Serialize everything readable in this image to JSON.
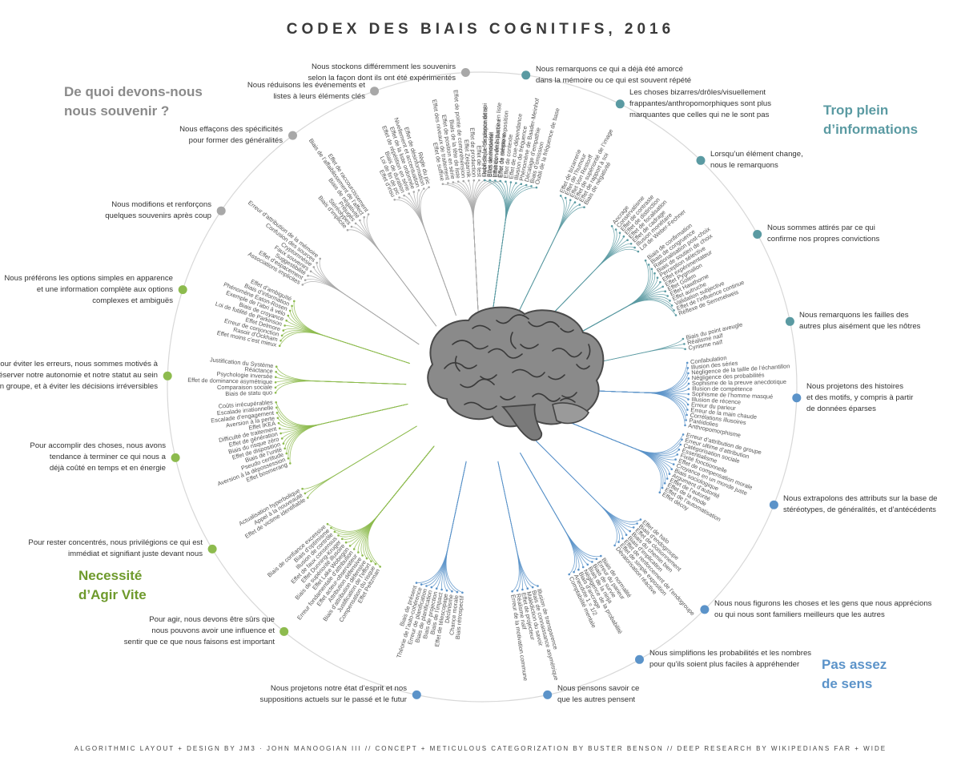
{
  "title": "CODEX DES BIAIS COGNITIFS, 2016",
  "credits": "ALGORITHMIC LAYOUT + DESIGN BY JM3 · JOHN MANOOGIAN III // CONCEPT + METICULOUS CATEGORIZATION BY BUSTER BENSON // DEEP RESEARCH BY WIKIPEDIANS FAR + WIDE",
  "colors": {
    "memory": "#a8a8a8",
    "info": "#5a9aa2",
    "meaning": "#5b93c9",
    "speed": "#8dbb4e"
  },
  "quadrants": {
    "memory": [
      "De quoi devons-nous",
      "nous souvenir ?"
    ],
    "info": [
      "Trop plein",
      "d’informations"
    ],
    "speed": [
      "Necessité",
      "d’Agir Vite"
    ],
    "meaning": [
      "Pas assez",
      "de sens"
    ]
  },
  "groups": [
    {
      "id": "m1",
      "quadrant": "memory",
      "angle": -93,
      "side": "r",
      "lines": [
        "Nous stockons différemment les souvenirs",
        "selon la façon dont ils ont été expérimentés"
      ],
      "leaves": [
        "Effet de suffixe",
        "Effet des niveaux de traitement",
        "Effet de position en série",
        "Biais de la tête de liste",
        "Effet de pointe de compréhension",
        "Effet Zeigarnik",
        "Effet de production",
        "Effet de test",
        "Oubli de la fréquence de soi",
        "Effet de modalité",
        "Inhibition de la partie en liste",
        "Effet de mémoire"
      ]
    },
    {
      "id": "m2",
      "quadrant": "memory",
      "angle": -110,
      "side": "r",
      "lines": [
        "Nous réduisons les événements et",
        "listes à leurs éléments clés"
      ],
      "leaves": [
        "Effet d’insu",
        "Loi de fin de pic",
        "Biais de duration",
        "Effet de répétition en série",
        "Effet de la liste ordonnée",
        "Nivellement et accentuation",
        "Effet de désinformation",
        "Règle du pic"
      ]
    },
    {
      "id": "m3",
      "quadrant": "memory",
      "angle": -127,
      "side": "r",
      "lines": [
        "Nous effaçons des spécificités",
        "pour former des généralités"
      ],
      "leaves": [
        "Biais d’implicite",
        "Stéréotypes",
        "Préjugés",
        "Biais de négativité",
        "Biais de l’affaiblissement de l’affect",
        "Effet de raccourcissement"
      ]
    },
    {
      "id": "m4",
      "quadrant": "memory",
      "angle": -146,
      "side": "r",
      "lines": [
        "Nous modifions et renforçons",
        "quelques souvenirs après coup"
      ],
      "leaves": [
        "Associations implicites",
        "Effet d’espacement",
        "Suggestibilité",
        "Faux souvenirs",
        "Cryptomnésie",
        "Confusion des sources",
        "Erreur d’attribution de la mémoire"
      ]
    },
    {
      "id": "s1",
      "quadrant": "speed",
      "angle": -162,
      "side": "r",
      "lines": [
        "Nous préférons les options simples en apparence",
        "et une information complète aux options",
        "complexes et ambiguës"
      ],
      "leaves": [
        "Effet moins c’est mieux",
        "Rasoir d’Ockham",
        "Erreur de conjonction",
        "Effet Delmore",
        "Loi de futilité de Parkinson",
        "Biais de croyance",
        "Exemple de l’abri à vélo",
        "Phénomène Eaton-Rosen",
        "Biais d’information",
        "Effet d’ambiguïté"
      ]
    },
    {
      "id": "s2",
      "quadrant": "speed",
      "angle": -178,
      "side": "r",
      "lines": [
        "Pour éviter les erreurs, nous sommes motivés à",
        "préserver notre autonomie et notre statut au sein",
        "d’un groupe, et à éviter les décisions irréversibles"
      ],
      "leaves": [
        "Biais de statu quo",
        "Comparaison sociale",
        "Effet de dominance asymétrique",
        "Psychologie inversée",
        "Réactance",
        "Justification du Système"
      ]
    },
    {
      "id": "s3",
      "quadrant": "speed",
      "angle": 167,
      "side": "r",
      "lines": [
        "Pour accomplir des choses, nous avons",
        "tendance à terminer ce qui nous a",
        "déjà coûté en temps et en énergie"
      ],
      "leaves": [
        "Effet boomerang",
        "Aversion à la dépossession",
        "Pseudo certitude",
        "Biais de l’unité",
        "Effet de disposition",
        "Biais du risque zéro",
        "Effet de génération",
        "Difficulté de traitement",
        "Effet IKEA",
        "Aversion à la perte",
        "Escalade d’engagement",
        "Escalade irrationnelle",
        "Coûts irrécupérables"
      ]
    },
    {
      "id": "s4",
      "quadrant": "speed",
      "angle": 149,
      "side": "r",
      "lines": [
        "Pour rester concentrés, nous privilégions ce qui est",
        "immédiat et signifiant juste devant nous"
      ],
      "leaves": [
        "Effet de victime identifiable",
        "Appel à la nouveauté",
        "Actualisation hyperbolique"
      ]
    },
    {
      "id": "s5",
      "quadrant": "speed",
      "angle": 129,
      "side": "r",
      "lines": [
        "Pour agir, nous devons être sûrs que",
        "nous pouvons avoir une influence et",
        "sentir que ce que nous faisons est important"
      ],
      "leaves": [
        "Effet Peltzman",
        "Compensation du risque",
        "Justification de l’effort",
        "Biais d’attribution défensive",
        "Attribution défensive",
        "Effet acteur-observateur",
        "Erreur fondamentale d’attribution",
        "Effet Lake Wobegon",
        "Biais de supériorité illusoire",
        "Effet Dunning-Kruger",
        "Effet de faux consensus",
        "Illusion de contrôle",
        "Biais d’optimisme",
        "Biais de confiance excessive"
      ]
    },
    {
      "id": "n1",
      "quadrant": "meaning",
      "angle": 102,
      "side": "r",
      "lines": [
        "Nous projetons notre état d’esprit et nos",
        "suppositions actuels sur le passé et le futur"
      ],
      "leaves": [
        "Biais rétrospectif",
        "Chance morale",
        "Déclinisme",
        "Effet de télescopage",
        "Biais de l’impact",
        "Biais de projection",
        "Biais de planification",
        "Erreur de planification",
        "Théorie de l’auto-cohérence",
        "Biais de présent"
      ]
    },
    {
      "id": "n2",
      "quadrant": "meaning",
      "angle": 78,
      "side": "l",
      "lines": [
        "Nous pensons savoir ce",
        "que les autres pensent"
      ],
      "leaves": [
        "Illusion de transparence",
        "Biais de connaissance asymétrique",
        "Malédiction du savoir",
        "Effet de projecteur",
        "Réalisme naïf",
        "Erreur de la motivation commune"
      ]
    },
    {
      "id": "n3",
      "quadrant": "meaning",
      "angle": 60,
      "side": "l",
      "lines": [
        "Nous simplifions les probabilités et les nombres",
        "pour qu’ils soient plus faciles à appréhender"
      ],
      "leaves": [
        "Biais de normalité",
        "Erreur du parieur",
        "Biais de survie",
        "Biais de la ninja",
        "Négligence de la probabilité",
        "Biais d’ancrage",
        "Anecdote 1 = 1/2",
        "Comptabilité mentale"
      ]
    },
    {
      "id": "n4",
      "quadrant": "meaning",
      "angle": 45,
      "side": "l",
      "lines": [
        "Nous nous figurons les choses et les gens que nous apprécions",
        "ou qui nous sont familiers meilleurs que les autres"
      ],
      "leaves": [
        "Effet de halo",
        "Biais d’endogroupe",
        "Effet de cloisonnement",
        "Biais du chemin bien",
        "Biais d’implication",
        "Effet de renforcement de l’endogroupe",
        "Effet de simple exposition",
        "Dévalorisation réactive"
      ]
    },
    {
      "id": "n5",
      "quadrant": "meaning",
      "angle": 22,
      "side": "l",
      "lines": [
        "Nous extrapolons des attributs sur la base de",
        "stéréotypes, de généralités, et d’antécédents"
      ],
      "leaves": [
        "Erreur d’attribution de groupe",
        "Erreur ultime d’attribution",
        "Catégorisation sociale",
        "Essentialisme",
        "Fixité fonctionnelle",
        "Effet de compensation morale",
        "Croyance en un monde juste",
        "Biais sociologique",
        "Argument d’autorité",
        "Effet de l’autorité",
        "Effet de la mode",
        "Effet de l’automatisation",
        "Effet décoy"
      ]
    },
    {
      "id": "n6",
      "quadrant": "meaning",
      "angle": 2,
      "side": "l",
      "lines": [
        "Nous projetons des histoires",
        "et des motifs, y compris à partir",
        "de données éparses"
      ],
      "leaves": [
        "Confabulation",
        "Illusion des séries",
        "Négligence de la taille de l’échantillon",
        "Négligence des probabilités",
        "Sophisme de la preuve anecdotique",
        "Illusion de compétence",
        "Sophisme de l’homme masqué",
        "Illusion de récence",
        "Erreur du parieur",
        "Erreur de la main chaude",
        "Corrélations illusoires",
        "Paréidolies",
        "Anthropomorphisme"
      ]
    },
    {
      "id": "i1",
      "quadrant": "info",
      "angle": -12,
      "side": "l",
      "lines": [
        "Nous remarquons les failles des",
        "autres plus aisément que les nôtres"
      ],
      "leaves": [
        "Biais du point aveugle",
        "Réalisme naïf",
        "Cynisme naïf"
      ]
    },
    {
      "id": "i2",
      "quadrant": "info",
      "angle": -29,
      "side": "l",
      "lines": [
        "Nous sommes attirés par ce qui",
        "confirme nos propres convictions"
      ],
      "leaves": [
        "Biais de confirmation",
        "Biais de congruence",
        "Rationalisation post-choix",
        "Biais de soutien de choix",
        "Perception sélective",
        "Effet expérimentateur",
        "Effet Pygmalion",
        "Effet Golem",
        "Effet Hawthorne",
        "Effet autruche",
        "Validation subjective",
        "Effet de l’influence continue",
        "Réflexe de Semmelweis"
      ]
    },
    {
      "id": "i3",
      "quadrant": "info",
      "angle": -46,
      "side": "l",
      "lines": [
        "Lorsqu’un élément change,",
        "nous le remarquons"
      ],
      "leaves": [
        "Ancrage",
        "Conservatisme",
        "Effet de contraste",
        "Effet de distinction",
        "Effet de focalisation",
        "Effet de cadrage",
        "Illusion monétaire",
        "Loi de Weber-Fechner"
      ]
    },
    {
      "id": "i4",
      "quadrant": "info",
      "angle": -64,
      "side": "l",
      "lines": [
        "Les choses bizarres/drôles/visuellement",
        "frappantes/anthropomorphiques sont plus",
        "marquantes que celles qui ne le sont pas"
      ],
      "leaves": [
        "Effet de bizarrerie",
        "Effet de l’humour",
        "Effet Von Restorff",
        "Effet de supériorité de l’image",
        "Effet de rapport à soi",
        "Biais de négativité"
      ]
    },
    {
      "id": "i5",
      "quadrant": "info",
      "angle": -82,
      "side": "l",
      "lines": [
        "Nous remarquons ce qui a déjà été amorcé",
        "dans la mémoire ou ce qui est souvent répété"
      ],
      "leaves": [
        "Heuristique de disponibilité",
        "Biais attentionnel",
        "Effet de vérité illusoire",
        "Effet de simple exposition",
        "Effet de contexte",
        "Effet de cue-dépendance",
        "Illusion de fréquence",
        "Phénomène de Baader-Meinhof",
        "Décalage d’empathie",
        "Biais d’omission",
        "Oubli de la fréquence de base"
      ]
    }
  ],
  "extra_leaves": {
    "m1_inner": [
      "Effet de génération",
      "Mot sur le bout de la langue",
      "Effet Google",
      "Effet de la musique d’ambiance",
      "Effet du trou"
    ]
  }
}
